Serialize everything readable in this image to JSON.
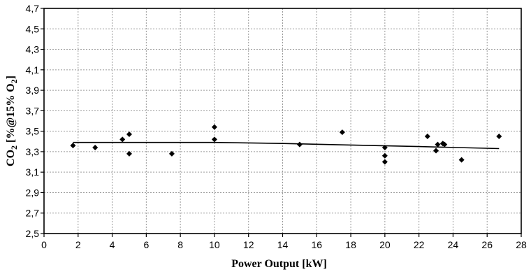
{
  "chart_data": {
    "type": "scatter",
    "title": "",
    "xlabel": "Power Output [kW]",
    "ylabel": {
      "parts": [
        "CO",
        "2",
        " [%@15% O",
        "2",
        "]"
      ]
    },
    "xlim": [
      0,
      28
    ],
    "ylim": [
      2.5,
      4.7
    ],
    "x_ticks": [
      0,
      2,
      4,
      6,
      8,
      10,
      12,
      14,
      16,
      18,
      20,
      22,
      24,
      26,
      28
    ],
    "y_ticks": [
      2.5,
      2.7,
      2.9,
      3.1,
      3.3,
      3.5,
      3.7,
      3.9,
      4.1,
      4.3,
      4.5,
      4.7
    ],
    "x_tick_labels": [
      "0",
      "2",
      "4",
      "6",
      "8",
      "10",
      "12",
      "14",
      "16",
      "18",
      "20",
      "22",
      "24",
      "26",
      "28"
    ],
    "y_tick_labels": [
      "2,5",
      "2,7",
      "2,9",
      "3,1",
      "3,3",
      "3,5",
      "3,7",
      "3,9",
      "4,1",
      "4,3",
      "4,5",
      "4,7"
    ],
    "grid": true,
    "marker": "diamond",
    "points": [
      {
        "x": 1.7,
        "y": 3.36
      },
      {
        "x": 3.0,
        "y": 3.34
      },
      {
        "x": 4.6,
        "y": 3.42
      },
      {
        "x": 5.0,
        "y": 3.47
      },
      {
        "x": 5.0,
        "y": 3.28
      },
      {
        "x": 7.5,
        "y": 3.28
      },
      {
        "x": 10.0,
        "y": 3.54
      },
      {
        "x": 10.0,
        "y": 3.42
      },
      {
        "x": 15.0,
        "y": 3.37
      },
      {
        "x": 17.5,
        "y": 3.49
      },
      {
        "x": 20.0,
        "y": 3.34
      },
      {
        "x": 20.0,
        "y": 3.26
      },
      {
        "x": 20.0,
        "y": 3.2
      },
      {
        "x": 22.5,
        "y": 3.45
      },
      {
        "x": 23.0,
        "y": 3.31
      },
      {
        "x": 23.1,
        "y": 3.37
      },
      {
        "x": 23.4,
        "y": 3.38
      },
      {
        "x": 23.5,
        "y": 3.37
      },
      {
        "x": 24.5,
        "y": 3.22
      },
      {
        "x": 26.7,
        "y": 3.45
      }
    ],
    "trendline": {
      "x": [
        1.7,
        6,
        10,
        14,
        18,
        22,
        26.7
      ],
      "y": [
        3.39,
        3.39,
        3.39,
        3.38,
        3.365,
        3.35,
        3.33
      ]
    }
  }
}
